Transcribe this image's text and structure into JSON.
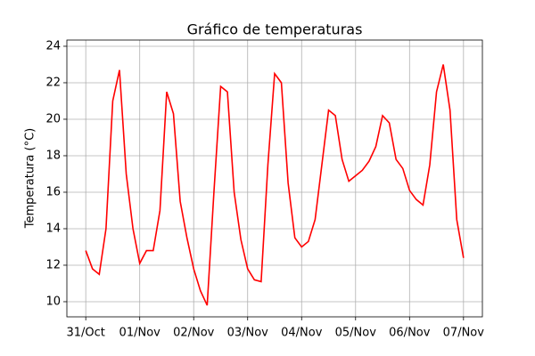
{
  "chart_data": {
    "type": "line",
    "title": "Gráfico de temperaturas",
    "y_label": "Temperatura (°C)",
    "y_label_color": "#ff0000",
    "x": [
      0,
      0.125,
      0.25,
      0.375,
      0.5,
      0.625,
      0.75,
      0.875,
      1,
      1.125,
      1.25,
      1.375,
      1.5,
      1.625,
      1.75,
      1.875,
      2,
      2.125,
      2.25,
      2.375,
      2.5,
      2.625,
      2.75,
      2.875,
      3,
      3.125,
      3.25,
      3.375,
      3.5,
      3.625,
      3.75,
      3.875,
      4,
      4.125,
      4.25,
      4.375,
      4.5,
      4.625,
      4.75,
      4.875,
      5,
      5.125,
      5.25,
      5.375,
      5.5,
      5.625,
      5.75,
      5.875,
      6,
      6.125,
      6.25,
      6.375,
      6.5,
      6.625,
      6.75,
      6.875,
      7
    ],
    "series": [
      {
        "name": "Temperatura",
        "color": "#ff0000",
        "values": [
          12.8,
          11.8,
          11.5,
          14,
          21,
          22.7,
          17,
          14,
          12.1,
          12.8,
          12.8,
          15,
          21.5,
          20.3,
          15.5,
          13.5,
          11.8,
          10.6,
          9.8,
          16,
          21.8,
          21.5,
          16,
          13.4,
          11.8,
          11.2,
          11.1,
          17.5,
          22.5,
          22,
          16.5,
          13.5,
          13,
          13.3,
          14.5,
          17.5,
          20.5,
          20.2,
          17.8,
          16.6,
          16.9,
          17.2,
          17.7,
          18.5,
          20.2,
          19.8,
          17.8,
          17.3,
          16.1,
          15.6,
          15.3,
          17.5,
          21.5,
          23,
          20.5,
          14.5,
          12.4
        ]
      }
    ],
    "xlim": [
      -0.35,
      7.35
    ],
    "ylim": [
      9.17,
      24.34
    ],
    "xticks": [
      {
        "value": 0,
        "label": "31/Oct"
      },
      {
        "value": 1,
        "label": "01/Nov"
      },
      {
        "value": 2,
        "label": "02/Nov"
      },
      {
        "value": 3,
        "label": "03/Nov"
      },
      {
        "value": 4,
        "label": "04/Nov"
      },
      {
        "value": 5,
        "label": "05/Nov"
      },
      {
        "value": 6,
        "label": "06/Nov"
      },
      {
        "value": 7,
        "label": "07/Nov"
      }
    ],
    "yticks": [
      10,
      12,
      14,
      16,
      18,
      20,
      22,
      24
    ],
    "grid": true
  }
}
